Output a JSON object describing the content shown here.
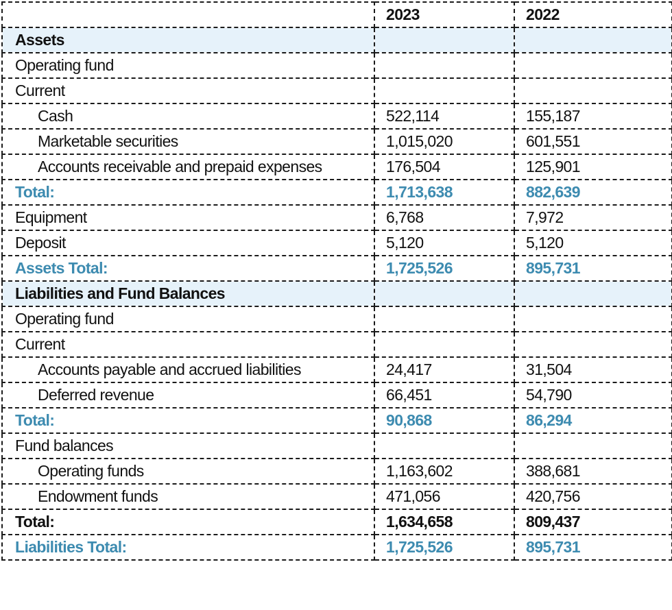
{
  "header": {
    "label": "",
    "y2023": "2023",
    "y2022": "2022"
  },
  "rows": [
    {
      "type": "section",
      "label": "Assets",
      "v2023": "",
      "v2022": ""
    },
    {
      "type": "plain",
      "label": "Operating fund",
      "v2023": "",
      "v2022": ""
    },
    {
      "type": "plain",
      "label": "Current",
      "v2023": "",
      "v2022": ""
    },
    {
      "type": "indent",
      "label": "Cash",
      "v2023": "522,114",
      "v2022": "155,187"
    },
    {
      "type": "indent",
      "label": "Marketable securities",
      "v2023": "1,015,020",
      "v2022": "601,551"
    },
    {
      "type": "indent",
      "label": "Accounts receivable and prepaid expenses",
      "v2023": "176,504",
      "v2022": "125,901"
    },
    {
      "type": "subtotal",
      "label": "Total:",
      "v2023": "1,713,638",
      "v2022": "882,639"
    },
    {
      "type": "plain",
      "label": "Equipment",
      "v2023": "6,768",
      "v2022": "7,972"
    },
    {
      "type": "plain",
      "label": "Deposit",
      "v2023": "5,120",
      "v2022": "5,120"
    },
    {
      "type": "subtotal",
      "label": "Assets Total:",
      "v2023": "1,725,526",
      "v2022": "895,731"
    },
    {
      "type": "section",
      "label": "Liabilities and Fund Balances",
      "v2023": "",
      "v2022": ""
    },
    {
      "type": "plain",
      "label": "Operating fund",
      "v2023": "",
      "v2022": ""
    },
    {
      "type": "plain",
      "label": "Current",
      "v2023": "",
      "v2022": ""
    },
    {
      "type": "indent",
      "label": "Accounts payable and accrued liabilities",
      "v2023": "24,417",
      "v2022": "31,504"
    },
    {
      "type": "indent",
      "label": "Deferred revenue",
      "v2023": "66,451",
      "v2022": "54,790"
    },
    {
      "type": "subtotal",
      "label": "Total:",
      "v2023": "90,868",
      "v2022": "86,294"
    },
    {
      "type": "plain",
      "label": "Fund balances",
      "v2023": "",
      "v2022": ""
    },
    {
      "type": "indent",
      "label": "Operating funds",
      "v2023": "1,163,602",
      "v2022": "388,681"
    },
    {
      "type": "indent",
      "label": "Endowment funds",
      "v2023": "471,056",
      "v2022": "420,756"
    },
    {
      "type": "total",
      "label": "Total:",
      "v2023": "1,634,658",
      "v2022": "809,437"
    },
    {
      "type": "subtotal",
      "label": "Liabilities Total:",
      "v2023": "1,725,526",
      "v2022": "895,731"
    }
  ],
  "colors": {
    "section_bg": "#e6f2fa",
    "subtotal_text": "#3d8bb0",
    "border": "#1a1a1a"
  }
}
